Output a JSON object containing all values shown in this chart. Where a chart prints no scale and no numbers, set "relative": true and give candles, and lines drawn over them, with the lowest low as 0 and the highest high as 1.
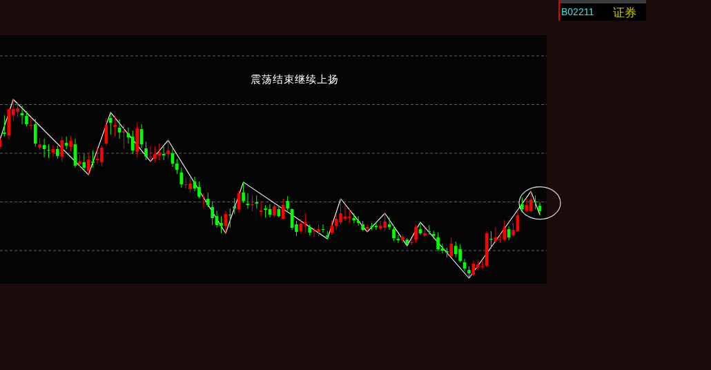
{
  "chart_data": {
    "type": "candlestick",
    "title": "震荡结束继续上扬",
    "relative": true,
    "grid": "y",
    "annotations": [
      "B02211",
      "证券"
    ],
    "categories": [
      null,
      null,
      null,
      null,
      null,
      null,
      null,
      null,
      null,
      null,
      null,
      null,
      null,
      null,
      null,
      null,
      null,
      null,
      null,
      null,
      null,
      null,
      null,
      null,
      null,
      null,
      null,
      null,
      null,
      null,
      null,
      null,
      null,
      null,
      null,
      null,
      null,
      null,
      null,
      null,
      null,
      null,
      null,
      null,
      null,
      null,
      null,
      null,
      null,
      null,
      null,
      null,
      null,
      null,
      null,
      null,
      null,
      null,
      null,
      null,
      null,
      null,
      null,
      null,
      null,
      null,
      null,
      null,
      null,
      null,
      null,
      null,
      null,
      null,
      null,
      null,
      null,
      null,
      null,
      null,
      null,
      null,
      null,
      null,
      null,
      null,
      null,
      null,
      null,
      null,
      null,
      null,
      null,
      null,
      null,
      null,
      null,
      null,
      null,
      null,
      null,
      null,
      null,
      null,
      null,
      null,
      null,
      null,
      null,
      null,
      null,
      null,
      null,
      null,
      null,
      null,
      null,
      null,
      null,
      null,
      null,
      null,
      null
    ],
    "ohlc": [
      [
        0.734,
        0.784,
        0.722,
        0.776
      ],
      [
        0.815,
        0.911,
        0.792,
        0.807
      ],
      [
        0.799,
        0.946,
        0.776,
        0.946
      ],
      [
        0.911,
        1.0,
        0.88,
        0.946
      ],
      [
        0.931,
        0.985,
        0.9,
        0.95
      ],
      [
        0.923,
        0.965,
        0.861,
        0.911
      ],
      [
        0.907,
        0.934,
        0.849,
        0.861
      ],
      [
        0.853,
        0.9,
        0.83,
        0.857
      ],
      [
        0.861,
        0.892,
        0.737,
        0.753
      ],
      [
        0.73,
        0.784,
        0.718,
        0.749
      ],
      [
        0.745,
        0.78,
        0.676,
        0.722
      ],
      [
        0.718,
        0.749,
        0.672,
        0.714
      ],
      [
        0.703,
        0.745,
        0.683,
        0.722
      ],
      [
        0.722,
        0.741,
        0.668,
        0.683
      ],
      [
        0.68,
        0.792,
        0.653,
        0.772
      ],
      [
        0.757,
        0.792,
        0.722,
        0.741
      ],
      [
        0.734,
        0.795,
        0.707,
        0.768
      ],
      [
        0.749,
        0.78,
        0.618,
        0.629
      ],
      [
        0.637,
        0.691,
        0.618,
        0.653
      ],
      [
        0.649,
        0.695,
        0.598,
        0.618
      ],
      [
        0.602,
        0.699,
        0.579,
        0.664
      ],
      [
        0.653,
        0.714,
        0.618,
        0.645
      ],
      [
        0.66,
        0.737,
        0.641,
        0.668
      ],
      [
        0.649,
        0.741,
        0.625,
        0.73
      ],
      [
        0.753,
        0.896,
        0.741,
        0.857
      ],
      [
        0.896,
        0.927,
        0.803,
        0.869
      ],
      [
        0.846,
        0.911,
        0.792,
        0.857
      ],
      [
        0.842,
        0.888,
        0.78,
        0.815
      ],
      [
        0.815,
        0.861,
        0.726,
        0.822
      ],
      [
        0.811,
        0.842,
        0.753,
        0.788
      ],
      [
        0.792,
        0.826,
        0.695,
        0.714
      ],
      [
        0.707,
        0.869,
        0.676,
        0.838
      ],
      [
        0.834,
        0.861,
        0.726,
        0.749
      ],
      [
        0.726,
        0.764,
        0.66,
        0.68
      ],
      [
        0.676,
        0.737,
        0.653,
        0.68
      ],
      [
        0.668,
        0.737,
        0.649,
        0.695
      ],
      [
        0.687,
        0.753,
        0.66,
        0.703
      ],
      [
        0.695,
        0.734,
        0.66,
        0.687
      ],
      [
        0.695,
        0.772,
        0.668,
        0.714
      ],
      [
        0.699,
        0.726,
        0.622,
        0.641
      ],
      [
        0.641,
        0.668,
        0.583,
        0.606
      ],
      [
        0.591,
        0.618,
        0.506,
        0.525
      ],
      [
        0.521,
        0.564,
        0.502,
        0.525
      ],
      [
        0.498,
        0.568,
        0.479,
        0.529
      ],
      [
        0.541,
        0.568,
        0.486,
        0.502
      ],
      [
        0.51,
        0.541,
        0.448,
        0.456
      ],
      [
        0.452,
        0.475,
        0.394,
        0.456
      ],
      [
        0.444,
        0.479,
        0.398,
        0.409
      ],
      [
        0.398,
        0.429,
        0.297,
        0.336
      ],
      [
        0.347,
        0.378,
        0.282,
        0.297
      ],
      [
        0.309,
        0.347,
        0.251,
        0.293
      ],
      [
        0.293,
        0.378,
        0.251,
        0.359
      ],
      [
        0.355,
        0.39,
        0.282,
        0.351
      ],
      [
        0.402,
        0.448,
        0.359,
        0.39
      ],
      [
        0.386,
        0.49,
        0.367,
        0.475
      ],
      [
        0.479,
        0.537,
        0.421,
        0.432
      ],
      [
        0.417,
        0.475,
        0.39,
        0.409
      ],
      [
        0.409,
        0.463,
        0.375,
        0.413
      ],
      [
        0.425,
        0.463,
        0.39,
        0.417
      ],
      [
        0.371,
        0.429,
        0.347,
        0.378
      ],
      [
        0.39,
        0.409,
        0.34,
        0.382
      ],
      [
        0.386,
        0.413,
        0.34,
        0.355
      ],
      [
        0.351,
        0.413,
        0.34,
        0.402
      ],
      [
        0.386,
        0.405,
        0.34,
        0.347
      ],
      [
        0.332,
        0.444,
        0.328,
        0.409
      ],
      [
        0.432,
        0.459,
        0.378,
        0.39
      ],
      [
        0.386,
        0.39,
        0.27,
        0.282
      ],
      [
        0.301,
        0.32,
        0.236,
        0.259
      ],
      [
        0.263,
        0.332,
        0.251,
        0.305
      ],
      [
        0.301,
        0.363,
        0.251,
        0.313
      ],
      [
        0.286,
        0.301,
        0.239,
        0.255
      ],
      [
        0.263,
        0.282,
        0.232,
        0.266
      ],
      [
        0.259,
        0.301,
        0.236,
        0.274
      ],
      [
        0.274,
        0.301,
        0.255,
        0.27
      ],
      [
        0.239,
        0.263,
        0.22,
        0.232
      ],
      [
        0.255,
        0.324,
        0.243,
        0.293
      ],
      [
        0.293,
        0.359,
        0.27,
        0.332
      ],
      [
        0.313,
        0.444,
        0.301,
        0.363
      ],
      [
        0.332,
        0.405,
        0.32,
        0.344
      ],
      [
        0.34,
        0.386,
        0.309,
        0.344
      ],
      [
        0.336,
        0.363,
        0.309,
        0.324
      ],
      [
        0.32,
        0.347,
        0.293,
        0.309
      ],
      [
        0.301,
        0.32,
        0.263,
        0.27
      ],
      [
        0.278,
        0.301,
        0.259,
        0.286
      ],
      [
        0.29,
        0.309,
        0.27,
        0.286
      ],
      [
        0.293,
        0.313,
        0.27,
        0.286
      ],
      [
        0.278,
        0.32,
        0.27,
        0.293
      ],
      [
        0.282,
        0.363,
        0.266,
        0.317
      ],
      [
        0.301,
        0.34,
        0.27,
        0.286
      ],
      [
        0.274,
        0.293,
        0.208,
        0.224
      ],
      [
        0.22,
        0.243,
        0.197,
        0.212
      ],
      [
        0.212,
        0.243,
        0.197,
        0.232
      ],
      [
        0.216,
        0.224,
        0.181,
        0.193
      ],
      [
        0.197,
        0.22,
        0.185,
        0.201
      ],
      [
        0.216,
        0.297,
        0.201,
        0.286
      ],
      [
        0.274,
        0.313,
        0.243,
        0.251
      ],
      [
        0.239,
        0.282,
        0.232,
        0.251
      ],
      [
        0.263,
        0.297,
        0.243,
        0.259
      ],
      [
        0.247,
        0.266,
        0.22,
        0.236
      ],
      [
        0.228,
        0.255,
        0.154,
        0.162
      ],
      [
        0.166,
        0.193,
        0.139,
        0.154
      ],
      [
        0.151,
        0.17,
        0.116,
        0.143
      ],
      [
        0.124,
        0.228,
        0.116,
        0.193
      ],
      [
        0.181,
        0.205,
        0.116,
        0.135
      ],
      [
        0.162,
        0.189,
        0.089,
        0.097
      ],
      [
        0.089,
        0.108,
        0.039,
        0.054
      ],
      [
        0.046,
        0.066,
        0.0,
        0.027
      ],
      [
        0.019,
        0.1,
        0.012,
        0.081
      ],
      [
        0.058,
        0.097,
        0.05,
        0.077
      ],
      [
        0.062,
        0.097,
        0.054,
        0.066
      ],
      [
        0.069,
        0.263,
        0.062,
        0.251
      ],
      [
        0.22,
        0.263,
        0.166,
        0.216
      ],
      [
        0.208,
        0.286,
        0.197,
        0.228
      ],
      [
        0.212,
        0.251,
        0.201,
        0.216
      ],
      [
        0.216,
        0.324,
        0.208,
        0.282
      ],
      [
        0.274,
        0.29,
        0.212,
        0.228
      ],
      [
        0.239,
        0.309,
        0.232,
        0.27
      ],
      [
        0.263,
        0.378,
        0.259,
        0.351
      ],
      [
        0.413,
        0.452,
        0.367,
        0.386
      ],
      [
        0.378,
        0.448,
        0.371,
        0.409
      ],
      [
        0.375,
        0.486,
        0.367,
        0.44
      ],
      [
        0.429,
        0.463,
        0.386,
        0.425
      ],
      [
        0.405,
        0.425,
        0.355,
        0.375
      ]
    ],
    "colors": [
      "#ff0000",
      "#00ff00",
      "#ff0000",
      "#ff0000",
      "#ff0000",
      "#00ff00",
      "#00ff00",
      "#ff0000",
      "#00ff00",
      "#ff0000",
      "#00ff00",
      "#00ff00",
      "#ff0000",
      "#00ff00",
      "#ff0000",
      "#00ff00",
      "#ff0000",
      "#00ff00",
      "#ff0000",
      "#00ff00",
      "#ff0000",
      "#00ff00",
      "#ff0000",
      "#ff0000",
      "#ff0000",
      "#00ff00",
      "#ff0000",
      "#00ff00",
      "#ff0000",
      "#00ff00",
      "#00ff00",
      "#ff0000",
      "#00ff00",
      "#00ff00",
      "#ff0000",
      "#ff0000",
      "#ff0000",
      "#00ff00",
      "#ff0000",
      "#00ff00",
      "#00ff00",
      "#00ff00",
      "#ff0000",
      "#ff0000",
      "#00ff00",
      "#00ff00",
      "#ff0000",
      "#00ff00",
      "#00ff00",
      "#00ff00",
      "#00ff00",
      "#ff0000",
      "#00ff00",
      "#00ff00",
      "#ff0000",
      "#00ff00",
      "#00ff00",
      "#ff0000",
      "#00ff00",
      "#ff0000",
      "#00ff00",
      "#00ff00",
      "#ff0000",
      "#00ff00",
      "#ff0000",
      "#00ff00",
      "#00ff00",
      "#00ff00",
      "#ff0000",
      "#ff0000",
      "#00ff00",
      "#ff0000",
      "#ff0000",
      "#00ff00",
      "#00ff00",
      "#ff0000",
      "#ff0000",
      "#ff0000",
      "#ff0000",
      "#ff0000",
      "#00ff00",
      "#00ff00",
      "#00ff00",
      "#ff0000",
      "#00ff00",
      "#00ff00",
      "#ff0000",
      "#ff0000",
      "#00ff00",
      "#00ff00",
      "#00ff00",
      "#ff0000",
      "#00ff00",
      "#ff0000",
      "#ff0000",
      "#00ff00",
      "#ff0000",
      "#00ff00",
      "#00ff00",
      "#00ff00",
      "#00ff00",
      "#00ff00",
      "#ff0000",
      "#00ff00",
      "#00ff00",
      "#00ff00",
      "#00ff00",
      "#ff0000",
      "#ff0000",
      "#ff0000",
      "#ff0000",
      "#00ff00",
      "#ff0000",
      "#ff0000",
      "#ff0000",
      "#00ff00",
      "#ff0000",
      "#ff0000",
      "#00ff00",
      "#ff0000",
      "#ff0000",
      "#00ff00",
      "#00ff00"
    ],
    "series": [
      {
        "type": "line",
        "color": "#ffffff",
        "values": [
          0.776,
          null,
          null,
          1.0,
          null,
          null,
          null,
          null,
          null,
          null,
          null,
          null,
          null,
          null,
          null,
          null,
          null,
          null,
          null,
          null,
          0.579,
          null,
          null,
          null,
          null,
          0.927,
          null,
          null,
          null,
          null,
          null,
          null,
          null,
          null,
          0.653,
          null,
          null,
          null,
          0.772,
          null,
          null,
          null,
          null,
          null,
          null,
          null,
          null,
          null,
          null,
          null,
          null,
          0.251,
          null,
          null,
          null,
          0.537,
          null,
          null,
          null,
          null,
          null,
          null,
          null,
          null,
          null,
          null,
          null,
          null,
          null,
          null,
          null,
          null,
          null,
          null,
          0.22,
          null,
          null,
          0.444,
          null,
          null,
          null,
          null,
          null,
          0.259,
          null,
          null,
          null,
          0.363,
          null,
          null,
          null,
          null,
          0.181,
          null,
          null,
          0.313,
          null,
          null,
          null,
          null,
          null,
          null,
          null,
          null,
          null,
          null,
          0.0,
          null,
          null,
          null,
          null,
          null,
          null,
          null,
          null,
          null,
          null,
          null,
          null,
          null,
          0.486,
          null,
          0.355
        ]
      }
    ]
  }
}
